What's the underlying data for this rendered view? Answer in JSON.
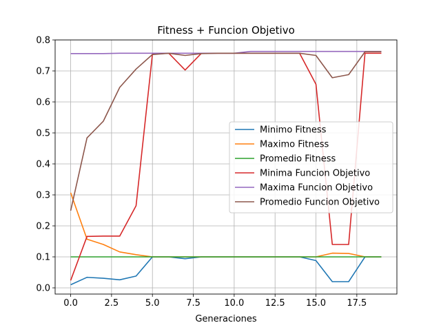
{
  "chart_data": {
    "type": "line",
    "title": "Fitness + Funcion Objetivo",
    "xlabel": "Generaciones",
    "ylabel": "",
    "xlim": [
      -0.95,
      19.95
    ],
    "ylim": [
      -0.02,
      0.8
    ],
    "grid": true,
    "legend_position": "center-right",
    "x": [
      0,
      1,
      2,
      3,
      4,
      5,
      6,
      7,
      8,
      9,
      10,
      11,
      12,
      13,
      14,
      15,
      16,
      17,
      18,
      19
    ],
    "x_ticks": [
      0.0,
      2.5,
      5.0,
      7.5,
      10.0,
      12.5,
      15.0,
      17.5
    ],
    "x_tick_labels": [
      "0.0",
      "2.5",
      "5.0",
      "7.5",
      "10.0",
      "12.5",
      "15.0",
      "17.5"
    ],
    "y_ticks": [
      0.0,
      0.1,
      0.2,
      0.3,
      0.4,
      0.5,
      0.6,
      0.7,
      0.8
    ],
    "y_tick_labels": [
      "0.0",
      "0.1",
      "0.2",
      "0.3",
      "0.4",
      "0.5",
      "0.6",
      "0.7",
      "0.8"
    ],
    "series": [
      {
        "name": "Minimo Fitness",
        "color": "#1f77b4",
        "values": [
          0.01,
          0.034,
          0.031,
          0.026,
          0.038,
          0.1,
          0.1,
          0.094,
          0.1,
          0.1,
          0.1,
          0.1,
          0.1,
          0.1,
          0.1,
          0.088,
          0.02,
          0.02,
          0.1,
          0.1
        ]
      },
      {
        "name": "Maximo Fitness",
        "color": "#ff7f0e",
        "values": [
          0.307,
          0.157,
          0.14,
          0.116,
          0.107,
          0.1,
          0.1,
          0.1,
          0.1,
          0.1,
          0.1,
          0.1,
          0.1,
          0.1,
          0.1,
          0.1,
          0.112,
          0.111,
          0.1,
          0.1
        ]
      },
      {
        "name": "Promedio Fitness",
        "color": "#2ca02c",
        "values": [
          0.1,
          0.1,
          0.1,
          0.1,
          0.1,
          0.1,
          0.1,
          0.1,
          0.1,
          0.1,
          0.1,
          0.1,
          0.1,
          0.1,
          0.1,
          0.1,
          0.1,
          0.1,
          0.1,
          0.1
        ]
      },
      {
        "name": "Minima Funcion Objetivo",
        "color": "#d62728",
        "values": [
          0.024,
          0.166,
          0.167,
          0.167,
          0.265,
          0.754,
          0.757,
          0.703,
          0.757,
          0.757,
          0.757,
          0.757,
          0.757,
          0.757,
          0.757,
          0.657,
          0.14,
          0.14,
          0.757,
          0.757
        ]
      },
      {
        "name": "Maxima Funcion Objetivo",
        "color": "#9467bd",
        "values": [
          0.756,
          0.756,
          0.756,
          0.757,
          0.757,
          0.757,
          0.757,
          0.757,
          0.757,
          0.757,
          0.757,
          0.763,
          0.763,
          0.763,
          0.763,
          0.763,
          0.763,
          0.763,
          0.763,
          0.763
        ]
      },
      {
        "name": "Promedio Funcion Objetivo",
        "color": "#8c564b",
        "values": [
          0.249,
          0.484,
          0.538,
          0.647,
          0.706,
          0.753,
          0.757,
          0.75,
          0.756,
          0.757,
          0.757,
          0.757,
          0.757,
          0.757,
          0.757,
          0.75,
          0.678,
          0.688,
          0.762,
          0.762
        ]
      }
    ]
  }
}
